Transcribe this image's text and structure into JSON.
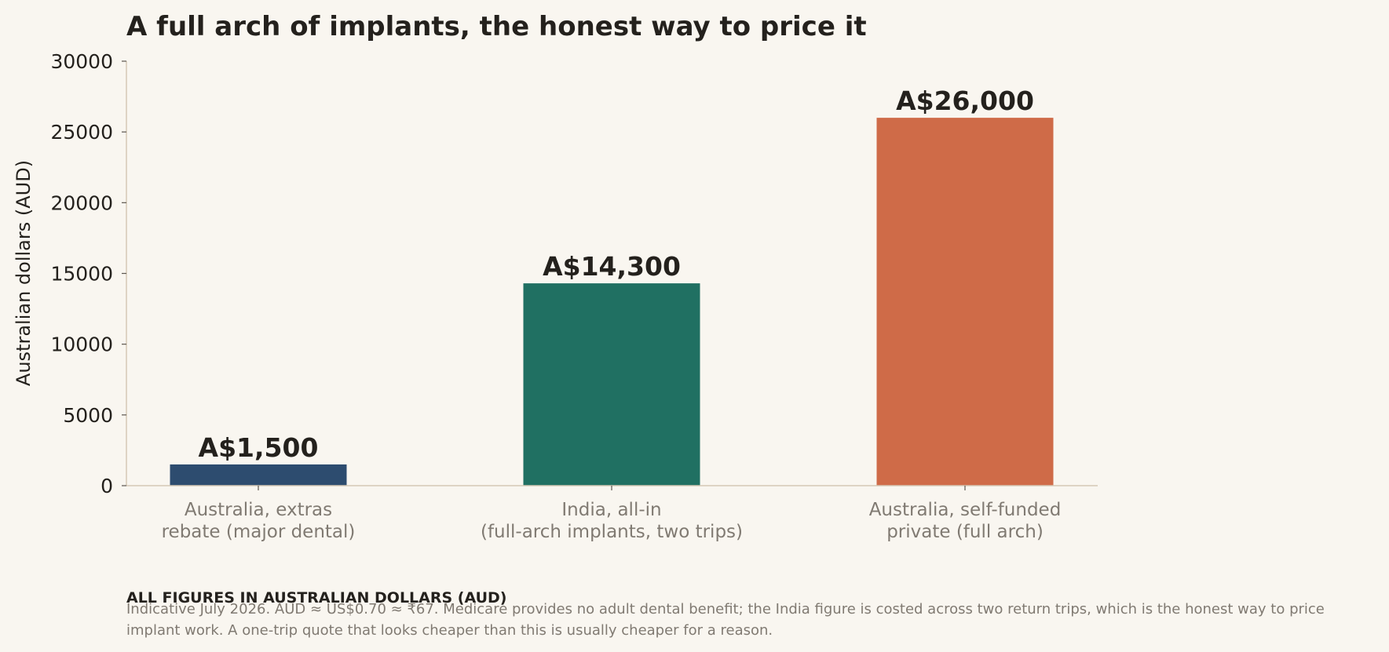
{
  "chart_data": {
    "type": "bar",
    "title": "A full arch of implants, the honest way to price it",
    "ylabel": "Australian dollars (AUD)",
    "xlabel": "",
    "ylim": [
      0,
      30000
    ],
    "yticks": [
      0,
      5000,
      10000,
      15000,
      20000,
      25000,
      30000
    ],
    "categories": [
      [
        "Australia, extras",
        "rebate (major dental)"
      ],
      [
        "India, all-in",
        "(full-arch implants, two trips)"
      ],
      [
        "Australia, self-funded",
        "private (full arch)"
      ]
    ],
    "values": [
      1500,
      14300,
      26000
    ],
    "value_labels": [
      "A$1,500",
      "A$14,300",
      "A$26,000"
    ],
    "colors": [
      "#2d4c6f",
      "#207062",
      "#cf6b48"
    ],
    "grid": false,
    "legend": "none"
  },
  "footer": {
    "heading": "ALL FIGURES IN AUSTRALIAN DOLLARS (AUD)",
    "note": "Indicative July 2026. AUD ≈ US$0.70 ≈ ₹67. Medicare provides no adult dental benefit; the India figure is costed across two return trips, which is the honest way to price implant work. A one-trip quote that looks cheaper than this is usually cheaper for a reason."
  },
  "colors": {
    "background": "#f9f6f0",
    "axis": "#d6c8b6",
    "text": "#24211d",
    "muted": "#807a72"
  }
}
